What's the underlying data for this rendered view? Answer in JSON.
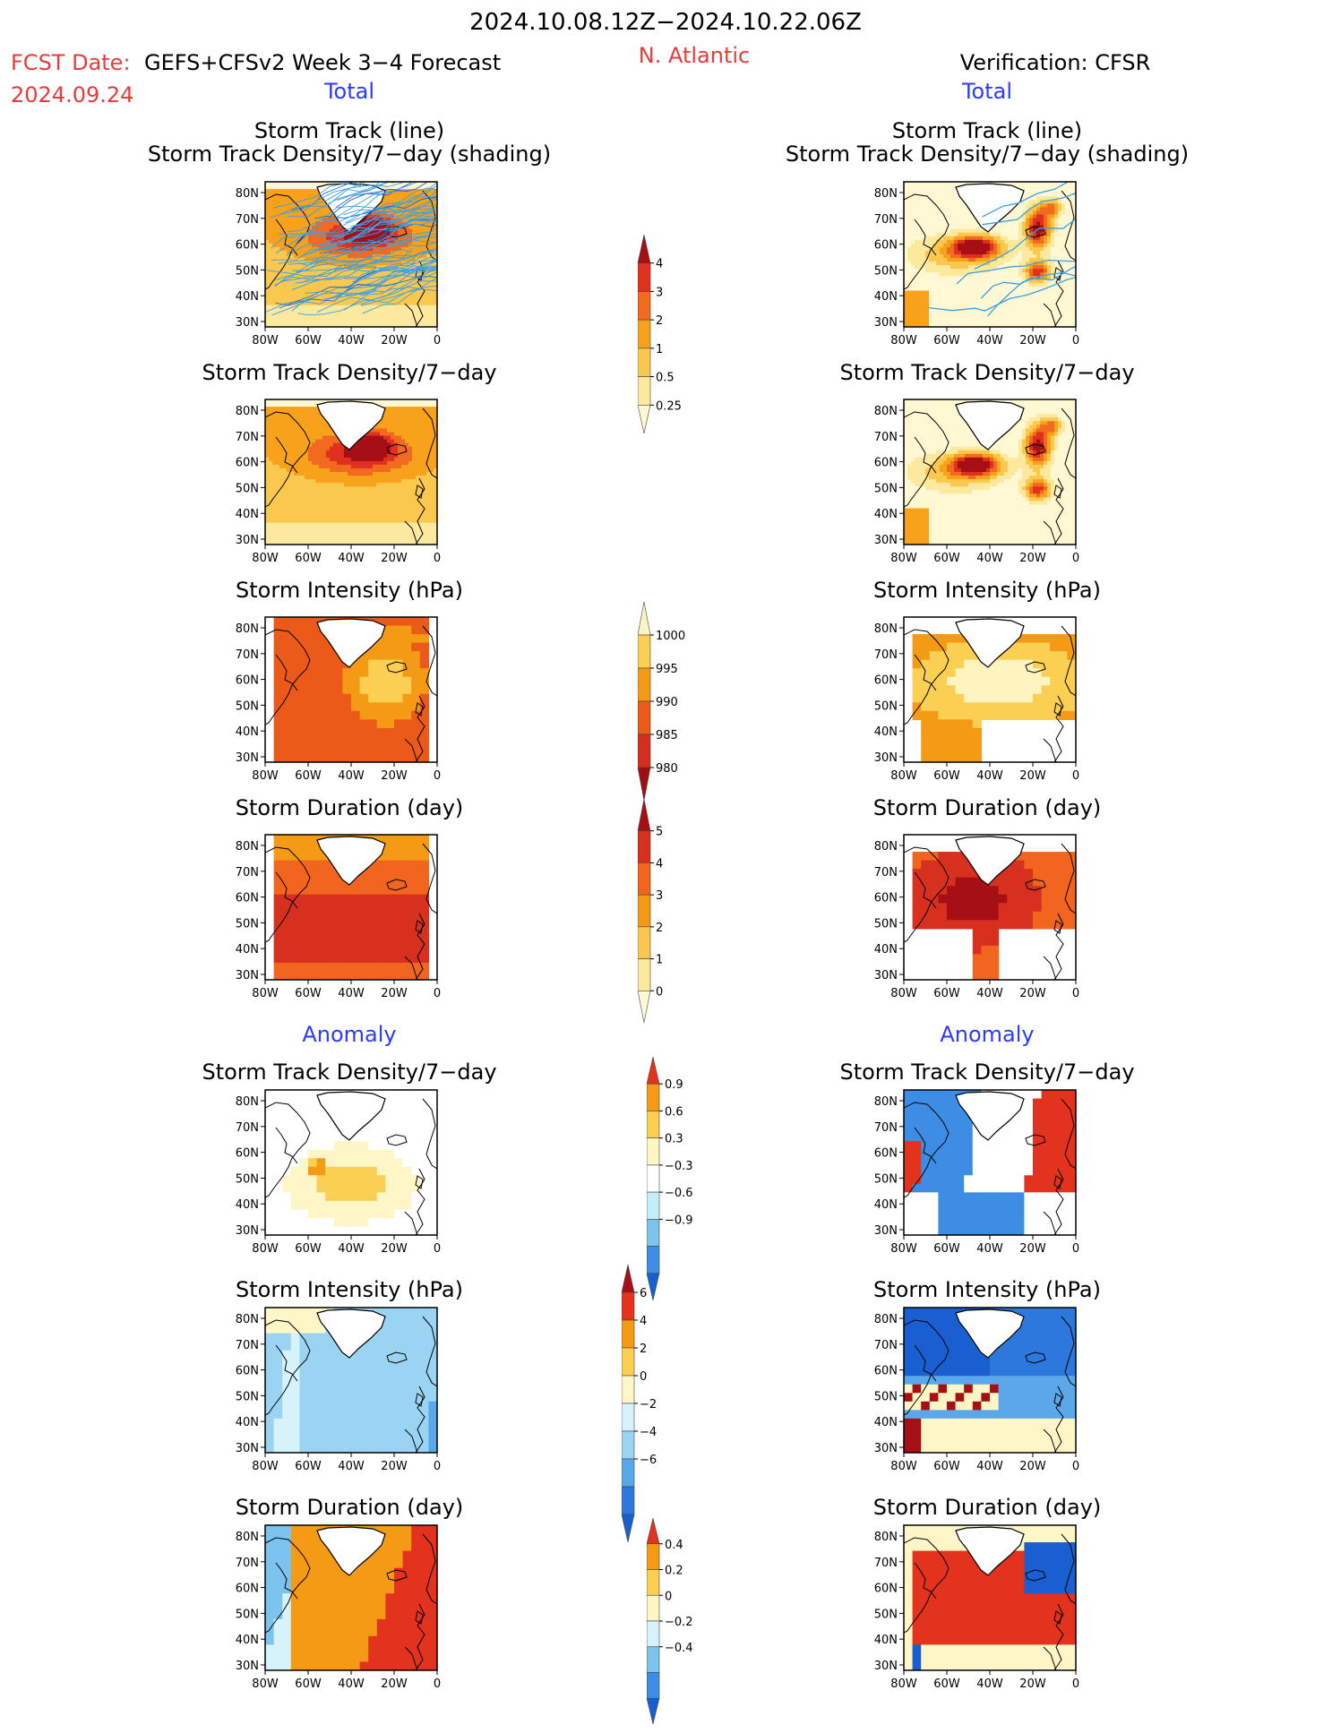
{
  "header": {
    "date_range": "2024.10.08.12Z−2024.10.22.06Z",
    "fcst_label": "FCST Date:",
    "model": "GEFS+CFSv2 Week 3−4 Forecast",
    "fcst_date": "2024.09.24",
    "region": "N. Atlantic",
    "verification": "Verification: CFSR",
    "total_left": "Total",
    "total_right": "Total"
  },
  "sections": {
    "anomaly_left": "Anomaly",
    "anomaly_right": "Anomaly"
  },
  "panel_titles": {
    "track_line": "Storm Track (line)",
    "track_density_shading": "Storm Track Density/7−day (shading)",
    "track_density": "Storm Track Density/7−day",
    "intensity": "Storm Intensity (hPa)",
    "duration": "Storm Duration (day)"
  },
  "axes": {
    "lat_ticks": [
      "80N",
      "70N",
      "60N",
      "50N",
      "40N",
      "30N"
    ],
    "lon_ticks": [
      "80W",
      "60W",
      "40W",
      "20W",
      "0"
    ]
  },
  "colorbars": {
    "density": {
      "labels": [
        "4",
        "3",
        "2",
        "1",
        "0.5",
        "0.25"
      ],
      "colors": [
        "#a50f15",
        "#e0301e",
        "#f26a1f",
        "#f7a21a",
        "#fbc84f",
        "#fde99e",
        "#fff8d2"
      ]
    },
    "intensity": {
      "labels": [
        "1000",
        "995",
        "990",
        "985",
        "980"
      ],
      "colors": [
        "#fff3c0",
        "#fbcf52",
        "#f59a14",
        "#ec5a19",
        "#d32f1e",
        "#a00f10"
      ]
    },
    "duration": {
      "labels": [
        "5",
        "4",
        "3",
        "2",
        "1",
        "0"
      ],
      "colors": [
        "#a50f15",
        "#d7301f",
        "#f2651e",
        "#f59a14",
        "#fbc84f",
        "#fde99e",
        "#fff8d2"
      ]
    },
    "anom_density": {
      "labels": [
        "0.9",
        "0.6",
        "0.3",
        "−0.3",
        "−0.6",
        "−0.9"
      ],
      "colors": [
        "#e3321d",
        "#f59a14",
        "#fbcf52",
        "#fff6c8",
        "#ffffff",
        "#c5eefa",
        "#7cc3f0",
        "#3c8de3",
        "#1a5fd1"
      ]
    },
    "anom_intensity": {
      "labels": [
        "6",
        "4",
        "2",
        "0",
        "−2",
        "−4",
        "−6"
      ],
      "colors": [
        "#a50f15",
        "#e3321d",
        "#f59a14",
        "#fbcf52",
        "#fff6c8",
        "#d6f3fb",
        "#9bd4f3",
        "#5aa8ea",
        "#2c78dc",
        "#1a5fd1"
      ]
    },
    "anom_duration": {
      "labels": [
        "0.4",
        "0.2",
        "0",
        "−0.2",
        "−0.4"
      ],
      "colors": [
        "#e3321d",
        "#f59a14",
        "#fbcf52",
        "#fff6c8",
        "#d6f3fb",
        "#7cc3f0",
        "#3c8de3",
        "#1a5fd1"
      ]
    }
  },
  "palettes": {
    "ocean_white": "#ffffff",
    "coast": "#000000",
    "track_line": "#3aa0e8",
    "track_line_dark": "#2266cc"
  }
}
